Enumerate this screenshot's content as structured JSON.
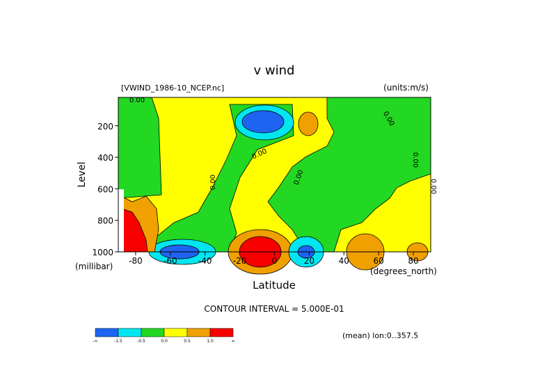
{
  "chart_data": {
    "type": "contour",
    "title": "v wind",
    "subtitle": "[VWIND_1986-10_NCEP.nc]",
    "units": "(units:m/s)",
    "x_label": "Latitude",
    "x_unit": "(degrees_north)",
    "y_label": "Level",
    "y_unit": "(millibar)",
    "xlim": [
      -90,
      90
    ],
    "xticks": [
      -80,
      -60,
      -40,
      -20,
      0,
      20,
      40,
      60,
      80
    ],
    "ylim": [
      1000,
      20
    ],
    "yticks": [
      200,
      400,
      600,
      800,
      1000
    ],
    "contour_labels": [
      "0.00",
      "0.00",
      "0.00",
      "0.00",
      "0.00",
      "0.00",
      "0.00"
    ],
    "contour_interval": "CONTOUR INTERVAL = 5.000E-01",
    "footer": "(mean) lon:0..357.5",
    "colorbar": {
      "colors": [
        "#1e64f0",
        "#00e6f0",
        "#22d822",
        "#ffff00",
        "#f0a000",
        "#f80000"
      ],
      "labels": [
        "-∞",
        "-1.5",
        "-0.5",
        "0.0",
        "0.5",
        "1.0",
        "∞"
      ]
    }
  }
}
